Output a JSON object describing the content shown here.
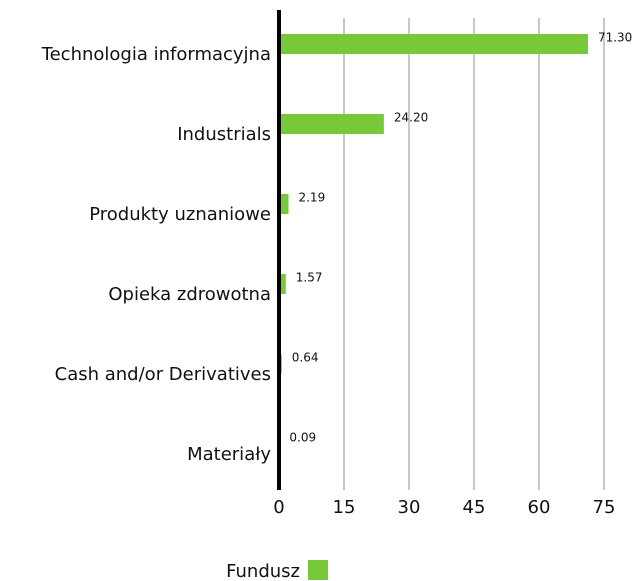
{
  "chart_data": {
    "type": "barh",
    "categories": [
      "Technologia informacyjna",
      "Industrials",
      "Produkty uznaniowe",
      "Opieka zdrowotna",
      "Cash and/or Derivatives",
      "Materiały"
    ],
    "series": [
      {
        "name": "Fundusz",
        "color": "#77c93a",
        "values": [
          71.3,
          24.2,
          2.19,
          1.57,
          0.64,
          0.09
        ],
        "value_labels": [
          "71.30",
          "24.20",
          "2.19",
          "1.57",
          "0.64",
          "0.09"
        ]
      }
    ],
    "xlim": [
      0,
      75
    ],
    "xticks": [
      0,
      15,
      30,
      45,
      60,
      75
    ],
    "grid": true
  }
}
